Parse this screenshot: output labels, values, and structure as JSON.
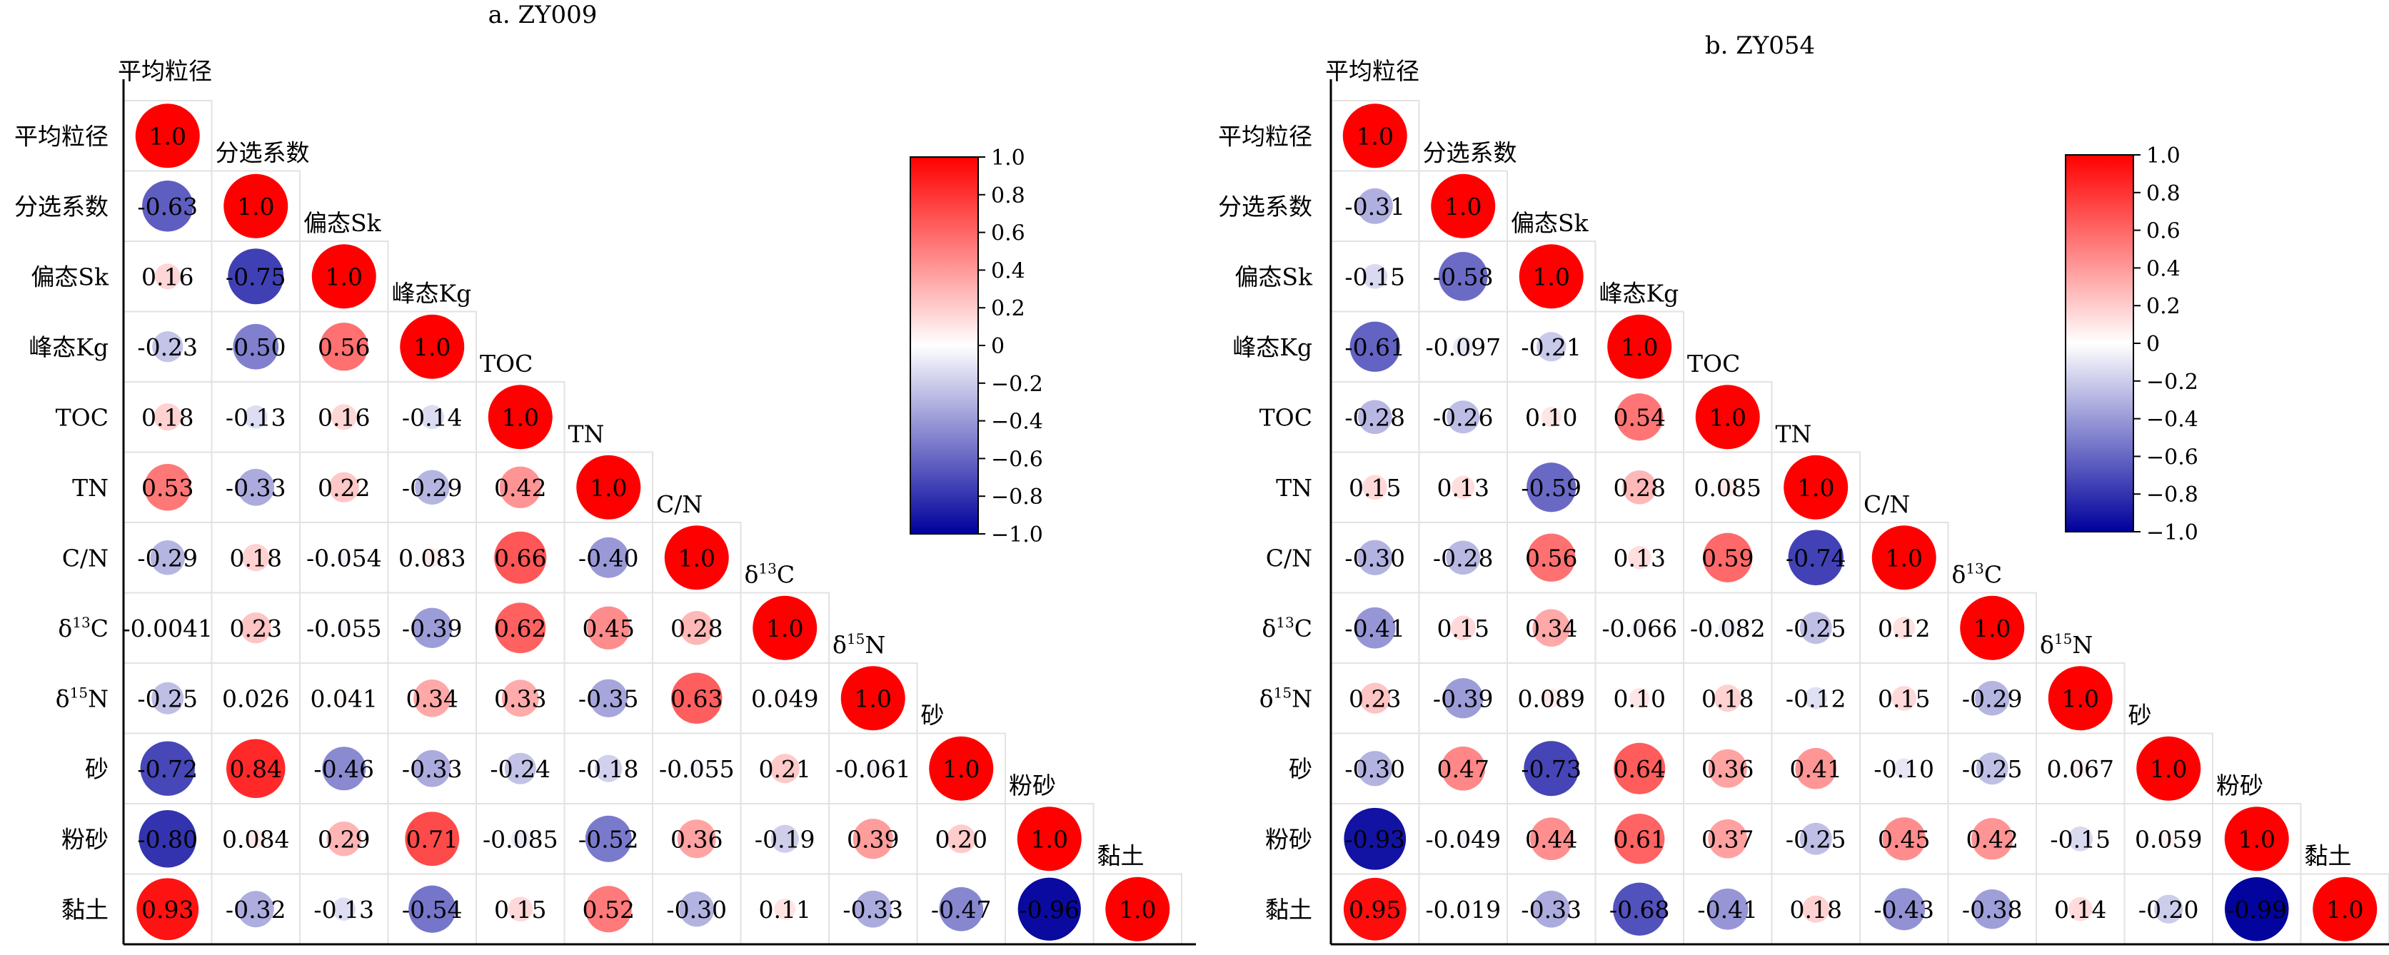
{
  "chart_data": [
    {
      "type": "heatmap",
      "title": "a. ZY009",
      "variables": [
        "平均粒径",
        "分选系数",
        "偏态Sk",
        "峰态Kg",
        "TOC",
        "TN",
        "C/N",
        "δ13C",
        "δ15N",
        "砂",
        "粉砂",
        "黏土"
      ],
      "variable_labels": [
        {
          "base": "平均粒径",
          "sup": ""
        },
        {
          "base": "分选系数",
          "sup": ""
        },
        {
          "base": "偏态Sk",
          "sup": ""
        },
        {
          "base": "峰态Kg",
          "sup": ""
        },
        {
          "base": "TOC",
          "sup": ""
        },
        {
          "base": "TN",
          "sup": ""
        },
        {
          "base": "C/N",
          "sup": ""
        },
        {
          "base": "δ",
          "sup": "13",
          "tail": "C"
        },
        {
          "base": "δ",
          "sup": "15",
          "tail": "N"
        },
        {
          "base": "砂",
          "sup": ""
        },
        {
          "base": "粉砂",
          "sup": ""
        },
        {
          "base": "黏土",
          "sup": ""
        }
      ],
      "matrix": [
        [
          "1.0"
        ],
        [
          "-0.63",
          "1.0"
        ],
        [
          "0.16",
          "-0.75",
          "1.0"
        ],
        [
          "-0.23",
          "-0.50",
          "0.56",
          "1.0"
        ],
        [
          "0.18",
          "-0.13",
          "0.16",
          "-0.14",
          "1.0"
        ],
        [
          "0.53",
          "-0.33",
          "0.22",
          "-0.29",
          "0.42",
          "1.0"
        ],
        [
          "-0.29",
          "0.18",
          "-0.054",
          "0.083",
          "0.66",
          "-0.40",
          "1.0"
        ],
        [
          "-0.0041",
          "0.23",
          "-0.055",
          "-0.39",
          "0.62",
          "0.45",
          "0.28",
          "1.0"
        ],
        [
          "-0.25",
          "0.026",
          "0.041",
          "0.34",
          "0.33",
          "-0.35",
          "0.63",
          "0.049",
          "1.0"
        ],
        [
          "-0.72",
          "0.84",
          "-0.46",
          "-0.33",
          "-0.24",
          "-0.18",
          "-0.055",
          "0.21",
          "-0.061",
          "1.0"
        ],
        [
          "-0.80",
          "0.084",
          "0.29",
          "0.71",
          "-0.085",
          "-0.52",
          "0.36",
          "-0.19",
          "0.39",
          "0.20",
          "1.0"
        ],
        [
          "0.93",
          "-0.32",
          "-0.13",
          "-0.54",
          "0.15",
          "0.52",
          "-0.30",
          "0.11",
          "-0.33",
          "-0.47",
          "-0.96",
          "1.0"
        ]
      ],
      "colorbar": {
        "min": -1.0,
        "max": 1.0,
        "ticks": [
          "1.0",
          "0.8",
          "0.6",
          "0.4",
          "0.2",
          "0",
          "−0.2",
          "−0.4",
          "−0.6",
          "−0.8",
          "−1.0"
        ]
      },
      "colors": {
        "positive": "#ff0000",
        "negative": "#00009c",
        "neutral": "#ffffff"
      }
    },
    {
      "type": "heatmap",
      "title": "b. ZY054",
      "variables": [
        "平均粒径",
        "分选系数",
        "偏态Sk",
        "峰态Kg",
        "TOC",
        "TN",
        "C/N",
        "δ13C",
        "δ15N",
        "砂",
        "粉砂",
        "黏土"
      ],
      "variable_labels": [
        {
          "base": "平均粒径",
          "sup": ""
        },
        {
          "base": "分选系数",
          "sup": ""
        },
        {
          "base": "偏态Sk",
          "sup": ""
        },
        {
          "base": "峰态Kg",
          "sup": ""
        },
        {
          "base": "TOC",
          "sup": ""
        },
        {
          "base": "TN",
          "sup": ""
        },
        {
          "base": "C/N",
          "sup": ""
        },
        {
          "base": "δ",
          "sup": "13",
          "tail": "C"
        },
        {
          "base": "δ",
          "sup": "15",
          "tail": "N"
        },
        {
          "base": "砂",
          "sup": ""
        },
        {
          "base": "粉砂",
          "sup": ""
        },
        {
          "base": "黏土",
          "sup": ""
        }
      ],
      "matrix": [
        [
          "1.0"
        ],
        [
          "-0.31",
          "1.0"
        ],
        [
          "-0.15",
          "-0.58",
          "1.0"
        ],
        [
          "-0.61",
          "-0.097",
          "-0.21",
          "1.0"
        ],
        [
          "-0.28",
          "-0.26",
          "0.10",
          "0.54",
          "1.0"
        ],
        [
          "0.15",
          "0.13",
          "-0.59",
          "0.28",
          "0.085",
          "1.0"
        ],
        [
          "-0.30",
          "-0.28",
          "0.56",
          "0.13",
          "0.59",
          "-0.74",
          "1.0"
        ],
        [
          "-0.41",
          "0.15",
          "0.34",
          "-0.066",
          "-0.082",
          "-0.25",
          "0.12",
          "1.0"
        ],
        [
          "0.23",
          "-0.39",
          "0.089",
          "0.10",
          "0.18",
          "-0.12",
          "0.15",
          "-0.29",
          "1.0"
        ],
        [
          "-0.30",
          "0.47",
          "-0.73",
          "0.64",
          "0.36",
          "0.41",
          "-0.10",
          "-0.25",
          "0.067",
          "1.0"
        ],
        [
          "-0.93",
          "-0.049",
          "0.44",
          "0.61",
          "0.37",
          "-0.25",
          "0.45",
          "0.42",
          "-0.15",
          "0.059",
          "1.0"
        ],
        [
          "0.95",
          "-0.019",
          "-0.33",
          "-0.68",
          "-0.41",
          "0.18",
          "-0.43",
          "-0.38",
          "0.14",
          "-0.20",
          "-0.99",
          "1.0"
        ]
      ],
      "colorbar": {
        "min": -1.0,
        "max": 1.0,
        "ticks": [
          "1.0",
          "0.8",
          "0.6",
          "0.4",
          "0.2",
          "0",
          "−0.2",
          "−0.4",
          "−0.6",
          "−0.8",
          "−1.0"
        ]
      },
      "colors": {
        "positive": "#ff0000",
        "negative": "#00009c",
        "neutral": "#ffffff"
      }
    }
  ]
}
